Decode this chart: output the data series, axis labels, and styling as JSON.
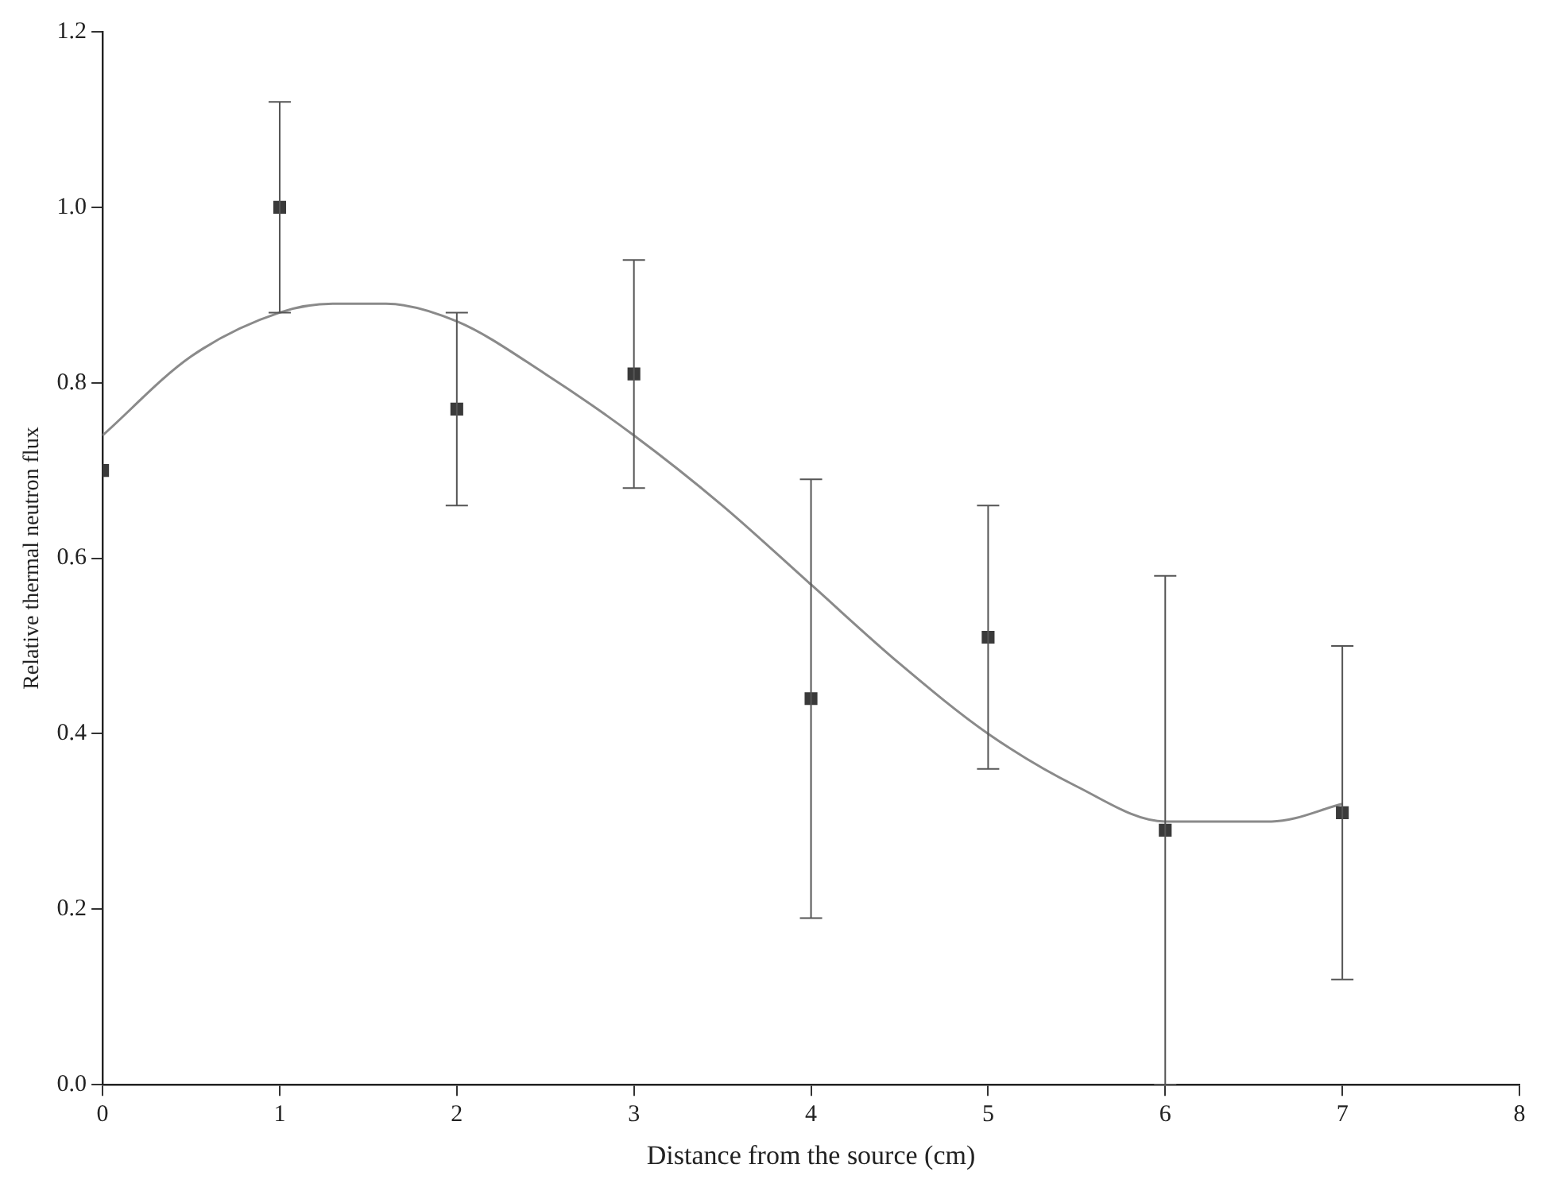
{
  "chart_data": {
    "type": "scatter",
    "xlabel": "Distance from the source (cm)",
    "ylabel": "Relative thermal neutron flux",
    "xlim": [
      0,
      8
    ],
    "xticks": [
      0,
      1,
      2,
      3,
      4,
      5,
      6,
      7,
      8
    ],
    "ylim": [
      0,
      1.2
    ],
    "yticks": [
      {
        "value": 0,
        "label": "0.0"
      },
      0.2,
      0.4,
      0.6,
      0.8,
      {
        "value": 1,
        "label": "1.0"
      },
      1.2
    ],
    "grid": false,
    "legend": false,
    "series": [
      {
        "type": "scatter",
        "marker": "square",
        "color": "#3a3a3a",
        "x": [
          0,
          1,
          2,
          3,
          4,
          5,
          6,
          7
        ],
        "values": [
          0.7,
          1.0,
          0.77,
          0.81,
          0.44,
          0.51,
          0.29,
          0.31
        ],
        "errors": [
          null,
          0.12,
          0.11,
          0.13,
          0.25,
          0.15,
          0.29,
          0.19
        ]
      },
      {
        "type": "line",
        "marker": "none",
        "color": "#8a8a8a",
        "x": [
          0,
          0.5,
          1,
          1.3,
          1.6,
          2,
          2.5,
          3,
          3.5,
          4,
          4.5,
          5,
          5.5,
          6,
          6.3,
          6.6,
          7
        ],
        "values": [
          0.74,
          0.83,
          0.88,
          0.89,
          0.89,
          0.87,
          0.81,
          0.74,
          0.66,
          0.57,
          0.48,
          0.4,
          0.34,
          0.3,
          0.3,
          0.3,
          0.32
        ]
      }
    ]
  }
}
